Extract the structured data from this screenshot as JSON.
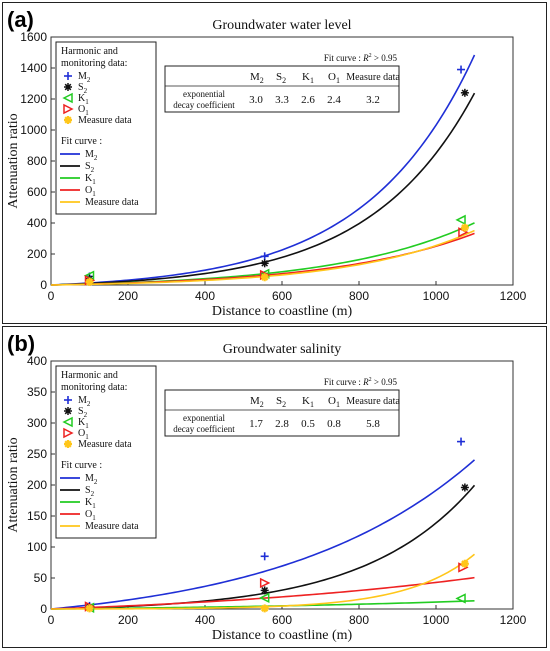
{
  "chart_data": [
    {
      "panel_label": "(a)",
      "type": "line",
      "title": "Groundwater water level",
      "xlabel": "Distance to coastline  (m)",
      "ylabel": "Attenuation ratio",
      "xlim": [
        0,
        1200
      ],
      "ylim": [
        0,
        1600
      ],
      "xticks": [
        0,
        200,
        400,
        600,
        800,
        1000,
        1200
      ],
      "yticks": [
        0,
        200,
        400,
        600,
        800,
        1000,
        1200,
        1400,
        1600
      ],
      "legend_placement": "top-left",
      "legend_heading_markers": "Harmonic and monitoring data:",
      "legend_heading_curves": "Fit curve :",
      "series": [
        {
          "name": "M2",
          "label_main": "M",
          "label_sub": "2",
          "color": "#1f2fd6",
          "marker": "plus",
          "points": [
            [
              100,
              55
            ],
            [
              555,
              185
            ],
            [
              1065,
              1390
            ]
          ],
          "curve": {
            "a": 30.5,
            "k": 0.00355
          }
        },
        {
          "name": "S2",
          "label_main": "S",
          "label_sub": "2",
          "color": "#111111",
          "marker": "star",
          "points": [
            [
              100,
              40
            ],
            [
              555,
              140
            ],
            [
              1075,
              1240
            ]
          ],
          "curve": {
            "a": 22,
            "k": 0.00368
          }
        },
        {
          "name": "K1",
          "label_main": "K",
          "label_sub": "1",
          "color": "#22cc22",
          "marker": "triangle-left",
          "points": [
            [
              100,
              60
            ],
            [
              555,
              72
            ],
            [
              1065,
              420
            ]
          ],
          "curve": {
            "a": 20,
            "k": 0.00277
          }
        },
        {
          "name": "O1",
          "label_main": "O",
          "label_sub": "1",
          "color": "#ee2222",
          "marker": "triangle-right",
          "points": [
            [
              100,
              30
            ],
            [
              555,
              65
            ],
            [
              1070,
              340
            ]
          ],
          "curve": {
            "a": 18,
            "k": 0.0027
          }
        },
        {
          "name": "Measure data",
          "label_main": "Measure data",
          "label_sub": "",
          "color": "#ffc61a",
          "marker": "asterisk",
          "points": [
            [
              100,
              20
            ],
            [
              555,
              50
            ],
            [
              1075,
              370
            ]
          ],
          "curve": {
            "a": 12,
            "k": 0.0031
          }
        }
      ],
      "fit_table": {
        "note": "Fit curve : R² > 0.95",
        "row_label_line1": "exponential",
        "row_label_line2": "decay coefficient",
        "columns": [
          "M2",
          "S2",
          "K1",
          "O1",
          "Measure data"
        ],
        "values": [
          "3.0",
          "3.3",
          "2.6",
          "2.4",
          "3.2"
        ]
      }
    },
    {
      "panel_label": "(b)",
      "type": "line",
      "title": "Groundwater  salinity",
      "xlabel": "Distance to coastline  (m)",
      "ylabel": "Attenuation ratio",
      "xlim": [
        0,
        1200
      ],
      "ylim": [
        0,
        400
      ],
      "xticks": [
        0,
        200,
        400,
        600,
        800,
        1000,
        1200
      ],
      "yticks": [
        0,
        50,
        100,
        150,
        200,
        250,
        300,
        350,
        400
      ],
      "legend_placement": "top-left",
      "legend_heading_markers": "Harmonic and monitoring data:",
      "legend_heading_curves": "Fit curve :",
      "series": [
        {
          "name": "M2",
          "label_main": "M",
          "label_sub": "2",
          "color": "#1f2fd6",
          "marker": "plus",
          "points": [
            [
              100,
              5
            ],
            [
              555,
              85
            ],
            [
              1065,
              270
            ]
          ],
          "curve": {
            "a": 29.6,
            "k": 0.00201
          }
        },
        {
          "name": "S2",
          "label_main": "S",
          "label_sub": "2",
          "color": "#111111",
          "marker": "star",
          "points": [
            [
              100,
              3
            ],
            [
              555,
              30
            ],
            [
              1075,
              196
            ]
          ],
          "curve": {
            "a": 4.1,
            "k": 0.00355
          }
        },
        {
          "name": "K1",
          "label_main": "K",
          "label_sub": "1",
          "color": "#22cc22",
          "marker": "triangle-left",
          "points": [
            [
              100,
              2
            ],
            [
              555,
              18
            ],
            [
              1065,
              17
            ]
          ],
          "curve": {
            "a": 4.8,
            "k": 0.0012
          }
        },
        {
          "name": "O1",
          "label_main": "O",
          "label_sub": "1",
          "color": "#ee2222",
          "marker": "triangle-right",
          "points": [
            [
              100,
              4
            ],
            [
              555,
              42
            ],
            [
              1070,
              67
            ]
          ],
          "curve": {
            "a": 19,
            "k": 0.00118
          }
        },
        {
          "name": "Measure data",
          "label_main": "Measure data",
          "label_sub": "",
          "color": "#ffc61a",
          "marker": "asterisk",
          "points": [
            [
              100,
              1
            ],
            [
              555,
              1
            ],
            [
              1075,
              73
            ]
          ],
          "curve": {
            "a": 0.15,
            "k": 0.0058
          }
        }
      ],
      "fit_table": {
        "note": "Fit curve : R² > 0.95",
        "row_label_line1": "exponential",
        "row_label_line2": "decay coefficient",
        "columns": [
          "M2",
          "S2",
          "K1",
          "O1",
          "Measure data"
        ],
        "values": [
          "1.7",
          "2.8",
          "0.5",
          "0.8",
          "5.8"
        ]
      }
    }
  ]
}
